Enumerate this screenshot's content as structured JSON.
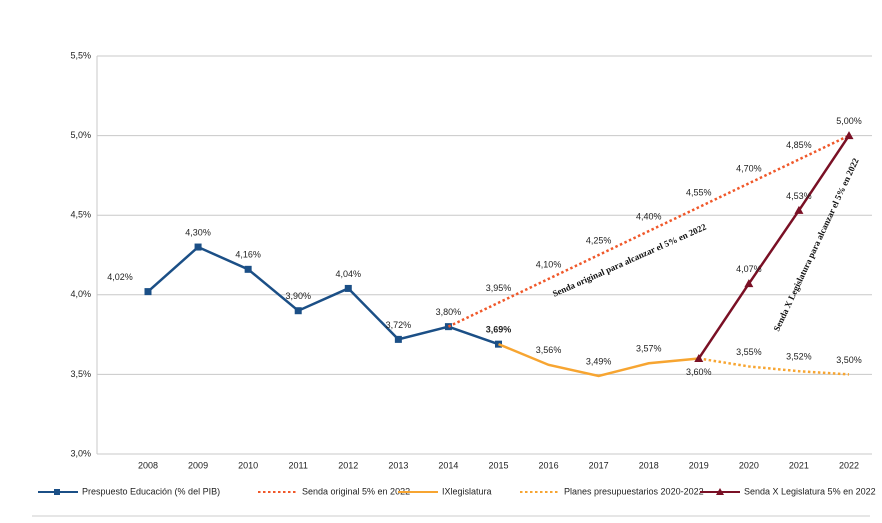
{
  "chart_data": {
    "type": "line",
    "categories": [
      "2008",
      "2009",
      "2010",
      "2011",
      "2012",
      "2013",
      "2014",
      "2015",
      "2016",
      "2017",
      "2018",
      "2019",
      "2020",
      "2021",
      "2022"
    ],
    "ylim": [
      3.0,
      5.5
    ],
    "yticks": [
      {
        "value": 3.0,
        "label": "3,0%"
      },
      {
        "value": 3.5,
        "label": "3,5%"
      },
      {
        "value": 4.0,
        "label": "4,0%"
      },
      {
        "value": 4.5,
        "label": "4,5%"
      },
      {
        "value": 5.0,
        "label": "5,0%"
      },
      {
        "value": 5.5,
        "label": "5,5%"
      }
    ],
    "grid": true,
    "legend": "bottom",
    "series": [
      {
        "name": "Prespuesto Educación (% del PIB)",
        "color": "#1b4f86",
        "line_style": "solid",
        "marker": "square",
        "values": [
          4.02,
          4.3,
          4.16,
          3.9,
          4.04,
          3.72,
          3.8,
          3.69,
          null,
          null,
          null,
          null,
          null,
          null,
          null
        ],
        "value_labels": [
          "4,02%",
          "4,30%",
          "4,16%",
          "3,90%",
          "4,04%",
          "3,72%",
          "3,80%",
          "3,69%",
          null,
          null,
          null,
          null,
          null,
          null,
          null
        ]
      },
      {
        "name": "Senda original 5% en 2022",
        "color": "#f0582a",
        "line_style": "dotted",
        "marker": "none",
        "values": [
          null,
          null,
          null,
          null,
          null,
          null,
          3.8,
          3.95,
          4.1,
          4.25,
          4.4,
          4.55,
          4.7,
          4.85,
          5.0
        ],
        "value_labels": [
          null,
          null,
          null,
          null,
          null,
          null,
          null,
          "3,95%",
          "4,10%",
          "4,25%",
          "4,40%",
          "4,55%",
          "4,70%",
          "4,85%",
          "5,00%"
        ]
      },
      {
        "name": "IXlegislatura",
        "color": "#f7a531",
        "line_style": "solid",
        "marker": "none",
        "values": [
          null,
          null,
          null,
          null,
          null,
          null,
          null,
          3.69,
          3.56,
          3.49,
          3.57,
          3.6,
          null,
          null,
          null
        ],
        "value_labels": [
          null,
          null,
          null,
          null,
          null,
          null,
          null,
          null,
          "3,56%",
          "3,49%",
          "3,57%",
          "3,60%",
          null,
          null,
          null
        ]
      },
      {
        "name": "Planes presupuestarios 2020-2022",
        "color": "#f7a531",
        "line_style": "dotted",
        "marker": "none",
        "values": [
          null,
          null,
          null,
          null,
          null,
          null,
          null,
          null,
          null,
          null,
          null,
          3.6,
          3.55,
          3.52,
          3.5
        ],
        "value_labels": [
          null,
          null,
          null,
          null,
          null,
          null,
          null,
          null,
          null,
          null,
          null,
          null,
          "3,55%",
          "3,52%",
          "3,50%"
        ]
      },
      {
        "name": "Senda X Legislatura 5% en 2022",
        "color": "#7a1025",
        "line_style": "solid",
        "marker": "triangle",
        "values": [
          null,
          null,
          null,
          null,
          null,
          null,
          null,
          null,
          null,
          null,
          null,
          3.6,
          4.07,
          4.53,
          5.0
        ],
        "value_labels": [
          null,
          null,
          null,
          null,
          null,
          null,
          null,
          null,
          null,
          null,
          null,
          null,
          "4,07%",
          "4,53%",
          null
        ]
      }
    ],
    "annotations": [
      "Senda original para alcanzar el 5% en 2022",
      "Senda X Legislatura para alcanzar el 5% en 2022"
    ]
  }
}
